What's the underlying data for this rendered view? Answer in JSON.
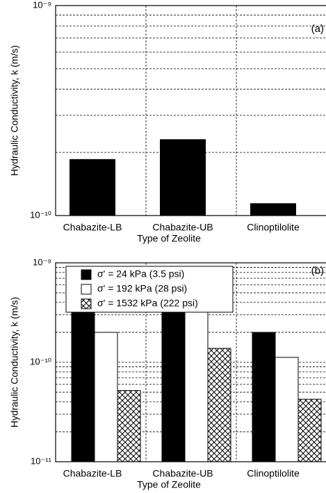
{
  "chart_data": [
    {
      "type": "bar",
      "annotation": "(a)",
      "ylabel": "Hydraulic Conductivity, k (m/s)",
      "xlabel": "Type of Zeolite",
      "categories": [
        "Chabazite-LB",
        "Chabazite-UB",
        "Clinoptilolite"
      ],
      "values": [
        1.85e-10,
        2.3e-10,
        1.14e-10
      ],
      "color": "#000000",
      "log_scale": true,
      "ylim": [
        1e-10,
        1e-09
      ],
      "yticks": [
        {
          "value": 1e-10,
          "label": "10⁻¹⁰"
        },
        {
          "value": 1e-09,
          "label": "10⁻⁹"
        }
      ],
      "yminorticks": [
        2e-10,
        3e-10,
        4e-10,
        5e-10,
        6e-10,
        7e-10,
        8e-10,
        9e-10
      ],
      "grid": true
    },
    {
      "type": "grouped_bar",
      "annotation": "(b)",
      "ylabel": "Hydraulic Conductivity, k (m/s)",
      "xlabel": "Type of Zeolite",
      "categories": [
        "Chabazite-LB",
        "Chabazite-UB",
        "Clinoptilolite"
      ],
      "series": [
        {
          "name": "σ' = 24 kPa (3.5 psi)",
          "color": "#000000",
          "values": [
            3.5e-10,
            4.6e-10,
            2e-10
          ]
        },
        {
          "name": "σ' = 192 kPa (28 psi)",
          "color": "#ffffff",
          "values": [
            2e-10,
            3.4e-10,
            1.12e-10
          ]
        },
        {
          "name": "σ' = 1532 kPa (222 psi)",
          "color": "#ffffff",
          "pattern": "crosshatch",
          "values": [
            5.2e-11,
            1.38e-10,
            4.25e-11
          ]
        }
      ],
      "log_scale": true,
      "ylim": [
        1e-11,
        1e-09
      ],
      "yticks": [
        {
          "value": 1e-11,
          "label": "10⁻¹¹"
        },
        {
          "value": 1e-10,
          "label": "10⁻¹⁰"
        },
        {
          "value": 1e-09,
          "label": "10⁻⁹"
        }
      ],
      "yminorticks": [
        2e-11,
        3e-11,
        4e-11,
        5e-11,
        6e-11,
        7e-11,
        8e-11,
        9e-11,
        2e-10,
        3e-10,
        4e-10,
        5e-10,
        6e-10,
        7e-10,
        8e-10,
        9e-10
      ],
      "grid": true,
      "legend": "top-left"
    }
  ]
}
